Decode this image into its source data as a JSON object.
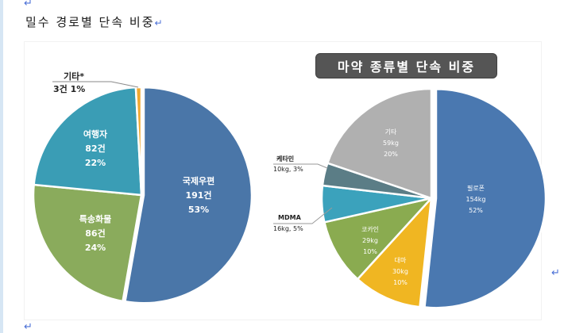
{
  "document": {
    "heading": "밀수 경로별 단속 비중",
    "para_mark": "↵"
  },
  "chart_data": [
    {
      "type": "pie",
      "title": "밀수 경로별 단속 비중",
      "unit": "건",
      "categories": [
        "국제우편",
        "특송화물",
        "여행자",
        "기타*"
      ],
      "values": [
        191,
        86,
        82,
        3
      ],
      "percentages": [
        53,
        24,
        22,
        1
      ],
      "colors": [
        "#4a76a8",
        "#8aab5c",
        "#3a9db5",
        "#f0a830"
      ],
      "labels": [
        {
          "name": "국제우편",
          "count": "191건",
          "pct": "53%"
        },
        {
          "name": "특송화물",
          "count": "86건",
          "pct": "24%"
        },
        {
          "name": "여행자",
          "count": "82건",
          "pct": "22%"
        },
        {
          "name": "기타*",
          "count": "3건 1%",
          "pct": ""
        }
      ]
    },
    {
      "type": "pie",
      "title": "마약 종류별 단속 비중",
      "unit": "kg",
      "categories": [
        "필로폰",
        "대마",
        "코카인",
        "MDMA",
        "케타민",
        "기타"
      ],
      "values": [
        154,
        30,
        29,
        16,
        10,
        59
      ],
      "percentages": [
        52,
        10,
        10,
        5,
        3,
        20
      ],
      "colors": [
        "#4a78b0",
        "#f0b622",
        "#8aab50",
        "#3ba2bc",
        "#5b7d86",
        "#b0b0b0"
      ],
      "labels": [
        {
          "name": "필로폰",
          "amount": "154kg",
          "pct": "52%"
        },
        {
          "name": "대마",
          "amount": "30kg",
          "pct": "10%"
        },
        {
          "name": "코카인",
          "amount": "29kg",
          "pct": "10%"
        },
        {
          "name": "MDMA",
          "amount": "16kg, 5%",
          "pct": ""
        },
        {
          "name": "케타민",
          "amount": "10kg, 3%",
          "pct": ""
        },
        {
          "name": "기타",
          "amount": "59kg",
          "pct": "20%"
        }
      ]
    }
  ]
}
